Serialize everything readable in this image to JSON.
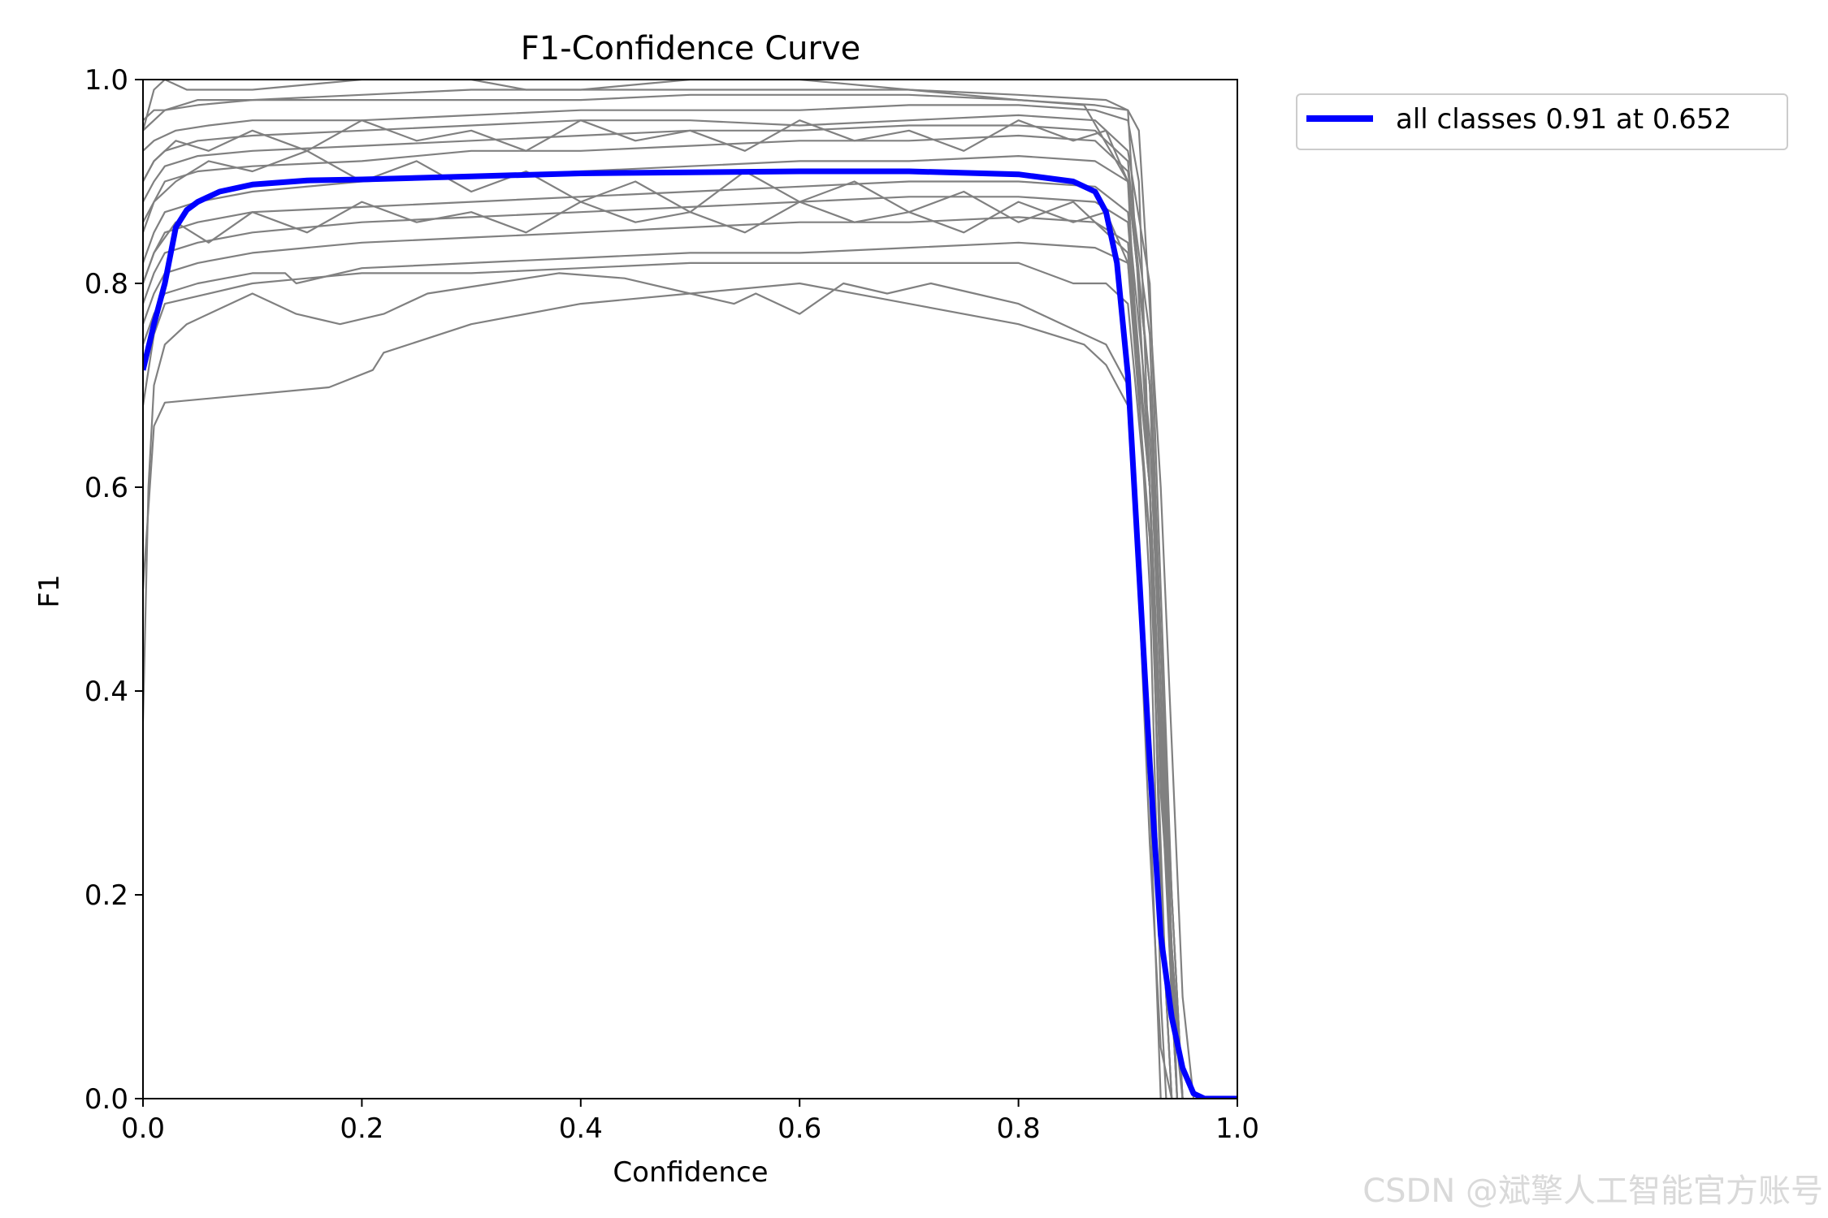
{
  "chart_data": {
    "type": "line",
    "title": "F1-Confidence Curve",
    "xlabel": "Confidence",
    "ylabel": "F1",
    "xlim": [
      0.0,
      1.0
    ],
    "ylim": [
      0.0,
      1.0
    ],
    "xticks": [
      "0.0",
      "0.2",
      "0.4",
      "0.6",
      "0.8",
      "1.0"
    ],
    "yticks": [
      "0.0",
      "0.2",
      "0.4",
      "0.6",
      "0.8",
      "1.0"
    ],
    "grid": false,
    "legend_position": "outside-top-right",
    "legend": [
      {
        "label": "all classes 0.91 at 0.652",
        "color": "#0000ff"
      }
    ],
    "class_curve_color": "#808080",
    "series": [
      {
        "name": "all classes",
        "color": "#0000ff",
        "emphasis": true,
        "x": [
          0.0,
          0.01,
          0.02,
          0.03,
          0.04,
          0.05,
          0.07,
          0.1,
          0.15,
          0.2,
          0.3,
          0.4,
          0.5,
          0.6,
          0.652,
          0.7,
          0.8,
          0.85,
          0.87,
          0.88,
          0.89,
          0.9,
          0.91,
          0.92,
          0.93,
          0.94,
          0.95,
          0.96,
          0.97,
          0.98,
          1.0
        ],
        "y": [
          0.715,
          0.76,
          0.8,
          0.855,
          0.872,
          0.88,
          0.89,
          0.897,
          0.901,
          0.902,
          0.905,
          0.908,
          0.909,
          0.91,
          0.91,
          0.91,
          0.907,
          0.9,
          0.89,
          0.87,
          0.82,
          0.71,
          0.52,
          0.33,
          0.16,
          0.08,
          0.03,
          0.005,
          0.0,
          0.0,
          0.0
        ]
      },
      {
        "name": "",
        "color": "#808080",
        "x": [
          0.0,
          0.005,
          0.01,
          0.02,
          0.04,
          0.06,
          0.1,
          0.14,
          0.18,
          0.22,
          0.26,
          0.32,
          0.38,
          0.44,
          0.5,
          0.54,
          0.56,
          0.6,
          0.64,
          0.68,
          0.72,
          0.76,
          0.8,
          0.84,
          0.88,
          0.9,
          0.91,
          0.92,
          0.93,
          0.94
        ],
        "y": [
          0.37,
          0.6,
          0.7,
          0.74,
          0.76,
          0.77,
          0.79,
          0.77,
          0.76,
          0.77,
          0.79,
          0.8,
          0.81,
          0.805,
          0.79,
          0.78,
          0.79,
          0.77,
          0.8,
          0.79,
          0.8,
          0.79,
          0.78,
          0.76,
          0.74,
          0.7,
          0.5,
          0.25,
          0.05,
          0.0
        ]
      },
      {
        "name": "",
        "color": "#808080",
        "x": [
          0.0,
          0.01,
          0.02,
          0.17,
          0.21,
          0.22,
          0.3,
          0.4,
          0.5,
          0.6,
          0.7,
          0.8,
          0.86,
          0.88,
          0.9,
          0.91,
          0.92,
          0.93
        ],
        "y": [
          0.5,
          0.66,
          0.683,
          0.698,
          0.715,
          0.732,
          0.76,
          0.78,
          0.79,
          0.8,
          0.78,
          0.76,
          0.74,
          0.72,
          0.68,
          0.55,
          0.3,
          0.0
        ]
      },
      {
        "name": "",
        "color": "#808080",
        "x": [
          0.0,
          0.005,
          0.01,
          0.02,
          0.04,
          0.1,
          0.2,
          0.3,
          0.35,
          0.4,
          0.5,
          0.6,
          0.7,
          0.8,
          0.86,
          0.9,
          0.92,
          0.93,
          0.935
        ],
        "y": [
          0.95,
          0.97,
          0.99,
          1.0,
          0.99,
          0.99,
          1.0,
          1.0,
          0.99,
          0.99,
          1.0,
          1.0,
          0.99,
          0.98,
          0.975,
          0.9,
          0.5,
          0.1,
          0.0
        ]
      },
      {
        "name": "",
        "color": "#808080",
        "x": [
          0.0,
          0.01,
          0.02,
          0.05,
          0.1,
          0.2,
          0.3,
          0.4,
          0.5,
          0.6,
          0.7,
          0.8,
          0.88,
          0.9,
          0.92,
          0.93,
          0.94
        ],
        "y": [
          0.95,
          0.96,
          0.97,
          0.98,
          0.98,
          0.985,
          0.99,
          0.99,
          0.99,
          0.99,
          0.99,
          0.985,
          0.98,
          0.97,
          0.6,
          0.2,
          0.0
        ]
      },
      {
        "name": "",
        "color": "#808080",
        "x": [
          0.0,
          0.01,
          0.03,
          0.06,
          0.1,
          0.2,
          0.3,
          0.4,
          0.5,
          0.6,
          0.7,
          0.8,
          0.87,
          0.9,
          0.91,
          0.93,
          0.95
        ],
        "y": [
          0.93,
          0.94,
          0.95,
          0.955,
          0.96,
          0.96,
          0.965,
          0.97,
          0.97,
          0.97,
          0.975,
          0.975,
          0.97,
          0.96,
          0.9,
          0.3,
          0.0
        ]
      },
      {
        "name": "",
        "color": "#808080",
        "x": [
          0.0,
          0.01,
          0.02,
          0.05,
          0.1,
          0.2,
          0.3,
          0.4,
          0.5,
          0.6,
          0.7,
          0.8,
          0.87,
          0.9,
          0.92,
          0.94,
          0.95
        ],
        "y": [
          0.9,
          0.92,
          0.93,
          0.94,
          0.945,
          0.95,
          0.955,
          0.96,
          0.96,
          0.955,
          0.96,
          0.965,
          0.96,
          0.93,
          0.8,
          0.2,
          0.0
        ]
      },
      {
        "name": "",
        "color": "#808080",
        "x": [
          0.0,
          0.01,
          0.02,
          0.05,
          0.1,
          0.2,
          0.3,
          0.4,
          0.5,
          0.6,
          0.7,
          0.8,
          0.87,
          0.9,
          0.92,
          0.94,
          0.945
        ],
        "y": [
          0.88,
          0.9,
          0.915,
          0.925,
          0.93,
          0.935,
          0.94,
          0.945,
          0.95,
          0.95,
          0.955,
          0.955,
          0.95,
          0.92,
          0.7,
          0.1,
          0.0
        ]
      },
      {
        "name": "",
        "color": "#808080",
        "x": [
          0.0,
          0.01,
          0.02,
          0.05,
          0.1,
          0.2,
          0.3,
          0.4,
          0.5,
          0.6,
          0.7,
          0.8,
          0.87,
          0.9,
          0.92,
          0.94,
          0.95
        ],
        "y": [
          0.85,
          0.88,
          0.9,
          0.91,
          0.915,
          0.92,
          0.93,
          0.93,
          0.935,
          0.94,
          0.94,
          0.945,
          0.94,
          0.91,
          0.75,
          0.15,
          0.0
        ]
      },
      {
        "name": "",
        "color": "#808080",
        "x": [
          0.0,
          0.01,
          0.02,
          0.05,
          0.1,
          0.2,
          0.3,
          0.4,
          0.5,
          0.6,
          0.7,
          0.8,
          0.87,
          0.9,
          0.92,
          0.94,
          0.95
        ],
        "y": [
          0.82,
          0.85,
          0.87,
          0.88,
          0.89,
          0.9,
          0.905,
          0.91,
          0.915,
          0.92,
          0.92,
          0.925,
          0.92,
          0.9,
          0.7,
          0.2,
          0.0
        ]
      },
      {
        "name": "",
        "color": "#808080",
        "x": [
          0.0,
          0.01,
          0.02,
          0.05,
          0.1,
          0.2,
          0.3,
          0.4,
          0.5,
          0.6,
          0.7,
          0.8,
          0.87,
          0.9,
          0.92,
          0.94,
          0.945
        ],
        "y": [
          0.8,
          0.83,
          0.85,
          0.86,
          0.87,
          0.875,
          0.88,
          0.885,
          0.89,
          0.895,
          0.9,
          0.9,
          0.895,
          0.87,
          0.65,
          0.15,
          0.0
        ]
      },
      {
        "name": "",
        "color": "#808080",
        "x": [
          0.0,
          0.01,
          0.02,
          0.05,
          0.1,
          0.2,
          0.3,
          0.4,
          0.5,
          0.6,
          0.7,
          0.8,
          0.87,
          0.9,
          0.92,
          0.94,
          0.95
        ],
        "y": [
          0.78,
          0.81,
          0.83,
          0.84,
          0.85,
          0.86,
          0.865,
          0.87,
          0.875,
          0.88,
          0.885,
          0.885,
          0.88,
          0.86,
          0.6,
          0.1,
          0.0
        ]
      },
      {
        "name": "",
        "color": "#808080",
        "x": [
          0.0,
          0.01,
          0.02,
          0.05,
          0.1,
          0.2,
          0.3,
          0.4,
          0.5,
          0.6,
          0.7,
          0.8,
          0.87,
          0.9,
          0.92,
          0.94,
          0.95
        ],
        "y": [
          0.76,
          0.79,
          0.81,
          0.82,
          0.83,
          0.84,
          0.845,
          0.85,
          0.855,
          0.86,
          0.86,
          0.865,
          0.86,
          0.84,
          0.6,
          0.12,
          0.0
        ]
      },
      {
        "name": "",
        "color": "#808080",
        "x": [
          0.0,
          0.01,
          0.02,
          0.05,
          0.1,
          0.13,
          0.14,
          0.2,
          0.3,
          0.4,
          0.5,
          0.6,
          0.7,
          0.8,
          0.87,
          0.9,
          0.92,
          0.94,
          0.945
        ],
        "y": [
          0.74,
          0.77,
          0.79,
          0.8,
          0.81,
          0.81,
          0.8,
          0.815,
          0.82,
          0.825,
          0.83,
          0.83,
          0.835,
          0.84,
          0.835,
          0.82,
          0.55,
          0.1,
          0.0
        ]
      },
      {
        "name": "",
        "color": "#808080",
        "x": [
          0.0,
          0.01,
          0.03,
          0.06,
          0.1,
          0.15,
          0.2,
          0.25,
          0.3,
          0.35,
          0.4,
          0.45,
          0.5,
          0.55,
          0.6,
          0.65,
          0.7,
          0.75,
          0.8,
          0.85,
          0.88,
          0.9,
          0.92,
          0.93,
          0.94
        ],
        "y": [
          0.86,
          0.88,
          0.9,
          0.92,
          0.91,
          0.93,
          0.9,
          0.92,
          0.89,
          0.91,
          0.88,
          0.9,
          0.87,
          0.91,
          0.88,
          0.9,
          0.87,
          0.89,
          0.86,
          0.88,
          0.85,
          0.83,
          0.6,
          0.2,
          0.0
        ]
      },
      {
        "name": "",
        "color": "#808080",
        "x": [
          0.0,
          0.01,
          0.03,
          0.06,
          0.1,
          0.15,
          0.2,
          0.25,
          0.3,
          0.35,
          0.4,
          0.45,
          0.5,
          0.55,
          0.6,
          0.65,
          0.7,
          0.75,
          0.8,
          0.85,
          0.88,
          0.9,
          0.92,
          0.94,
          0.95
        ],
        "y": [
          0.9,
          0.92,
          0.94,
          0.93,
          0.95,
          0.93,
          0.96,
          0.94,
          0.95,
          0.93,
          0.96,
          0.94,
          0.95,
          0.93,
          0.96,
          0.94,
          0.95,
          0.93,
          0.96,
          0.94,
          0.95,
          0.9,
          0.7,
          0.2,
          0.0
        ]
      },
      {
        "name": "",
        "color": "#808080",
        "x": [
          0.0,
          0.01,
          0.03,
          0.06,
          0.1,
          0.15,
          0.2,
          0.25,
          0.3,
          0.35,
          0.4,
          0.45,
          0.5,
          0.55,
          0.6,
          0.65,
          0.7,
          0.75,
          0.8,
          0.85,
          0.88,
          0.9,
          0.92,
          0.94,
          0.945
        ],
        "y": [
          0.8,
          0.83,
          0.86,
          0.84,
          0.87,
          0.85,
          0.88,
          0.86,
          0.87,
          0.85,
          0.88,
          0.86,
          0.87,
          0.85,
          0.88,
          0.86,
          0.87,
          0.85,
          0.88,
          0.86,
          0.87,
          0.82,
          0.6,
          0.1,
          0.0
        ]
      },
      {
        "name": "",
        "color": "#808080",
        "x": [
          0.0,
          0.01,
          0.02,
          0.1,
          0.2,
          0.3,
          0.4,
          0.5,
          0.6,
          0.7,
          0.8,
          0.85,
          0.88,
          0.9,
          0.92,
          0.935,
          0.94
        ],
        "y": [
          0.68,
          0.75,
          0.78,
          0.8,
          0.81,
          0.81,
          0.815,
          0.82,
          0.82,
          0.82,
          0.82,
          0.8,
          0.8,
          0.78,
          0.55,
          0.1,
          0.0
        ]
      },
      {
        "name": "",
        "color": "#808080",
        "x": [
          0.0,
          0.01,
          0.02,
          0.05,
          0.1,
          0.2,
          0.3,
          0.4,
          0.5,
          0.6,
          0.7,
          0.8,
          0.87,
          0.9,
          0.91,
          0.93,
          0.95,
          0.96
        ],
        "y": [
          0.96,
          0.97,
          0.97,
          0.975,
          0.98,
          0.98,
          0.98,
          0.98,
          0.985,
          0.985,
          0.985,
          0.98,
          0.975,
          0.97,
          0.95,
          0.6,
          0.1,
          0.0
        ]
      }
    ]
  },
  "watermark": "CSDN @斌擎人工智能官方账号"
}
